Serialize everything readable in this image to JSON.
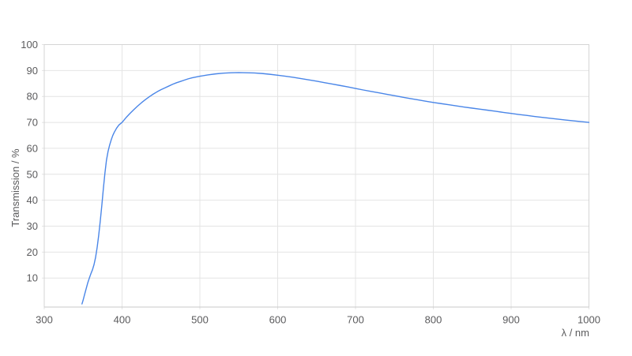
{
  "page": {
    "background": "#ffffff"
  },
  "chart_data": {
    "type": "line",
    "title": "",
    "xlabel": "λ / nm",
    "ylabel": "Transmission / %",
    "xlim": [
      300,
      1000
    ],
    "ylim": [
      -1.2,
      100
    ],
    "x_ticks": [
      300,
      400,
      500,
      600,
      700,
      800,
      900,
      1000
    ],
    "y_ticks": [
      10,
      20,
      30,
      40,
      50,
      60,
      70,
      80,
      90,
      100
    ],
    "grid": true,
    "legend_position": "none",
    "colors": {
      "line": "#4a86e8",
      "gridline": "#e4e4e4",
      "border": "#d4d4d4",
      "axis_line": "#c9c9c9",
      "label_text": "#5b5b5d",
      "background": "#ffffff"
    },
    "series": [
      {
        "name": "Transmission",
        "color": "#4a86e8",
        "points": [
          [
            348.5,
            0
          ],
          [
            350,
            1.5
          ],
          [
            352,
            3.8
          ],
          [
            354,
            6
          ],
          [
            356,
            8.2
          ],
          [
            358,
            10
          ],
          [
            360,
            11.7
          ],
          [
            362,
            13.2
          ],
          [
            364,
            15.2
          ],
          [
            366,
            18
          ],
          [
            368,
            21.8
          ],
          [
            370,
            26.5
          ],
          [
            372,
            32
          ],
          [
            374,
            38
          ],
          [
            376,
            44.5
          ],
          [
            378,
            50.5
          ],
          [
            380,
            55.5
          ],
          [
            382,
            58.8
          ],
          [
            384,
            61.2
          ],
          [
            386,
            63.2
          ],
          [
            388,
            64.9
          ],
          [
            390,
            66.2
          ],
          [
            393,
            67.8
          ],
          [
            396,
            69
          ],
          [
            400,
            70
          ],
          [
            405,
            71.8
          ],
          [
            410,
            73.4
          ],
          [
            415,
            74.9
          ],
          [
            420,
            76.3
          ],
          [
            425,
            77.6
          ],
          [
            430,
            78.8
          ],
          [
            435,
            79.9
          ],
          [
            440,
            80.9
          ],
          [
            445,
            81.8
          ],
          [
            450,
            82.6
          ],
          [
            455,
            83.3
          ],
          [
            460,
            84
          ],
          [
            465,
            84.7
          ],
          [
            470,
            85.3
          ],
          [
            475,
            85.8
          ],
          [
            480,
            86.3
          ],
          [
            485,
            86.8
          ],
          [
            490,
            87.2
          ],
          [
            495,
            87.5
          ],
          [
            500,
            87.8
          ],
          [
            510,
            88.3
          ],
          [
            520,
            88.7
          ],
          [
            530,
            89
          ],
          [
            540,
            89.15
          ],
          [
            550,
            89.2
          ],
          [
            560,
            89.15
          ],
          [
            570,
            89.05
          ],
          [
            580,
            88.85
          ],
          [
            590,
            88.55
          ],
          [
            600,
            88.2
          ],
          [
            610,
            87.8
          ],
          [
            620,
            87.4
          ],
          [
            630,
            86.9
          ],
          [
            640,
            86.4
          ],
          [
            650,
            85.9
          ],
          [
            660,
            85.35
          ],
          [
            670,
            84.8
          ],
          [
            680,
            84.25
          ],
          [
            690,
            83.7
          ],
          [
            700,
            83.1
          ],
          [
            710,
            82.5
          ],
          [
            720,
            81.95
          ],
          [
            730,
            81.4
          ],
          [
            740,
            80.85
          ],
          [
            750,
            80.3
          ],
          [
            760,
            79.75
          ],
          [
            770,
            79.2
          ],
          [
            780,
            78.7
          ],
          [
            790,
            78.2
          ],
          [
            800,
            77.7
          ],
          [
            810,
            77.25
          ],
          [
            820,
            76.8
          ],
          [
            830,
            76.35
          ],
          [
            840,
            75.9
          ],
          [
            850,
            75.5
          ],
          [
            860,
            75.1
          ],
          [
            870,
            74.7
          ],
          [
            880,
            74.3
          ],
          [
            890,
            73.85
          ],
          [
            900,
            73.45
          ],
          [
            910,
            73.05
          ],
          [
            920,
            72.7
          ],
          [
            930,
            72.3
          ],
          [
            940,
            71.95
          ],
          [
            950,
            71.6
          ],
          [
            960,
            71.25
          ],
          [
            970,
            70.9
          ],
          [
            980,
            70.6
          ],
          [
            990,
            70.3
          ],
          [
            1000,
            70
          ]
        ]
      }
    ]
  }
}
